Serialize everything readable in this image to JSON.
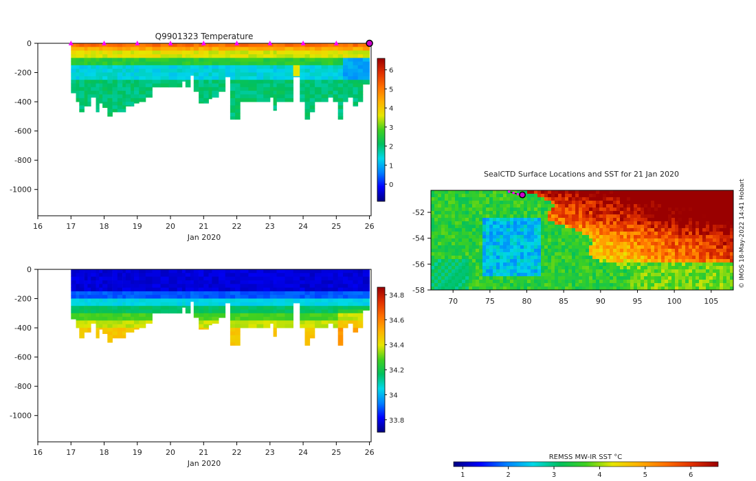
{
  "chart_data": [
    {
      "type": "heatmap",
      "title": "Q9901323  Temperature",
      "xlabel": "Jan 2020",
      "ylabel": "",
      "xlim": [
        16,
        26.05
      ],
      "ylim": [
        -1180,
        0
      ],
      "x_ticks": [
        "16",
        "17",
        "18",
        "19",
        "20",
        "21",
        "22",
        "23",
        "24",
        "25",
        "26"
      ],
      "y_ticks": [
        "0",
        "-200",
        "-400",
        "-600",
        "-800",
        "-1000"
      ],
      "profile_markers_x": [
        17,
        18,
        19,
        20,
        21,
        22,
        23,
        24,
        25
      ],
      "current_marker_x": 26,
      "colorbar": {
        "min": -0.9,
        "max": 6.6,
        "ticks": [
          "0",
          "1",
          "2",
          "3",
          "4",
          "5",
          "6"
        ]
      },
      "profile_depths": [
        [
          17.0,
          -340
        ],
        [
          17.15,
          -400
        ],
        [
          17.25,
          -470
        ],
        [
          17.4,
          -430
        ],
        [
          17.5,
          -430
        ],
        [
          17.6,
          -370
        ],
        [
          17.75,
          -470
        ],
        [
          17.85,
          -410
        ],
        [
          17.95,
          -440
        ],
        [
          18.1,
          -500
        ],
        [
          18.25,
          -470
        ],
        [
          18.4,
          -470
        ],
        [
          18.55,
          -470
        ],
        [
          18.65,
          -430
        ],
        [
          18.8,
          -430
        ],
        [
          18.9,
          -410
        ],
        [
          19.05,
          -400
        ],
        [
          19.25,
          -370
        ],
        [
          19.45,
          -300
        ],
        [
          19.7,
          -300
        ],
        [
          19.95,
          -300
        ],
        [
          20.2,
          -300
        ],
        [
          20.35,
          -260
        ],
        [
          20.45,
          -300
        ],
        [
          20.6,
          -220
        ],
        [
          20.7,
          -330
        ],
        [
          20.85,
          -410
        ],
        [
          21.0,
          -410
        ],
        [
          21.15,
          -380
        ],
        [
          21.25,
          -370
        ],
        [
          21.45,
          -330
        ],
        [
          21.65,
          -230
        ],
        [
          21.8,
          -520
        ],
        [
          21.95,
          -520
        ],
        [
          22.1,
          -400
        ],
        [
          22.35,
          -400
        ],
        [
          22.6,
          -400
        ],
        [
          22.8,
          -400
        ],
        [
          23.0,
          -370
        ],
        [
          23.1,
          -460
        ],
        [
          23.2,
          -400
        ],
        [
          23.45,
          -400
        ],
        [
          23.7,
          -230
        ],
        [
          23.9,
          -400
        ],
        [
          24.05,
          -520
        ],
        [
          24.2,
          -470
        ],
        [
          24.35,
          -400
        ],
        [
          24.55,
          -400
        ],
        [
          24.75,
          -370
        ],
        [
          24.9,
          -400
        ],
        [
          25.05,
          -520
        ],
        [
          25.2,
          -400
        ],
        [
          25.35,
          -370
        ],
        [
          25.5,
          -430
        ],
        [
          25.65,
          -400
        ],
        [
          25.8,
          -280
        ]
      ]
    },
    {
      "type": "heatmap",
      "title": "",
      "xlabel": "Jan 2020",
      "ylabel": "",
      "xlim": [
        16,
        26.05
      ],
      "ylim": [
        -1180,
        0
      ],
      "x_ticks": [
        "16",
        "17",
        "18",
        "19",
        "20",
        "21",
        "22",
        "23",
        "24",
        "25",
        "26"
      ],
      "y_ticks": [
        "0",
        "-200",
        "-400",
        "-600",
        "-800",
        "-1000"
      ],
      "colorbar": {
        "min": 33.7,
        "max": 34.86,
        "ticks": [
          "33.8",
          "34",
          "34.2",
          "34.4",
          "34.6",
          "34.8"
        ]
      }
    },
    {
      "type": "heatmap",
      "title": "SealCTD Surface Locations and SST for 21 Jan 2020",
      "xlabel": "",
      "ylabel": "",
      "xlim": [
        67,
        108
      ],
      "ylim": [
        -58,
        -50.3
      ],
      "x_ticks": [
        "70",
        "75",
        "80",
        "85",
        "90",
        "95",
        "100",
        "105"
      ],
      "y_ticks": [
        "-52",
        "-54",
        "-56",
        "-58"
      ],
      "seal_track": [
        [
          77.6,
          -50.4
        ],
        [
          78.2,
          -50.5
        ],
        [
          78.8,
          -50.6
        ],
        [
          79.3,
          -50.7
        ]
      ],
      "current_position": [
        79.4,
        -50.65
      ],
      "colorbar_label": "REMSS MW-IR SST °C",
      "colorbar": {
        "min": 0.8,
        "max": 6.6,
        "ticks": [
          "1",
          "2",
          "3",
          "4",
          "5",
          "6"
        ]
      }
    }
  ],
  "watermark": "© IMOS 18-May-2022 14:41 Hobart"
}
